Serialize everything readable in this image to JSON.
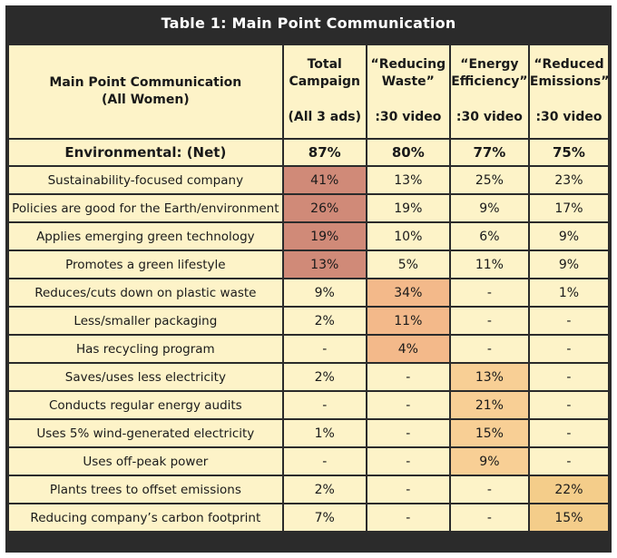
{
  "title": "Table 1: Main Point Communication",
  "header": {
    "label_col": [
      "Main Point Communication",
      "(All Women)"
    ],
    "columns": [
      {
        "title": [
          "Total",
          "Campaign"
        ],
        "sub": "(All 3 ads)"
      },
      {
        "title": [
          "“Reducing",
          "Waste”"
        ],
        "sub": ":30 video"
      },
      {
        "title": [
          "“Energy",
          "Efficiency”"
        ],
        "sub": ":30 video"
      },
      {
        "title": [
          "“Reduced",
          "Emissions”"
        ],
        "sub": ":30 video"
      }
    ]
  },
  "net": {
    "label": "Environmental: (Net)",
    "values": [
      "87%",
      "80%",
      "77%",
      "75%"
    ]
  },
  "rows": [
    {
      "label": "Sustainability-focused company",
      "values": [
        "41%",
        "13%",
        "25%",
        "23%"
      ]
    },
    {
      "label": "Policies are good for the Earth/environment",
      "values": [
        "26%",
        "19%",
        "9%",
        "17%"
      ]
    },
    {
      "label": "Applies emerging green technology",
      "values": [
        "19%",
        "10%",
        "6%",
        "9%"
      ]
    },
    {
      "label": "Promotes a green lifestyle",
      "values": [
        "13%",
        "5%",
        "11%",
        "9%"
      ]
    },
    {
      "label": "Reduces/cuts down on plastic waste",
      "values": [
        "9%",
        "34%",
        "-",
        "1%"
      ]
    },
    {
      "label": "Less/smaller packaging",
      "values": [
        "2%",
        "11%",
        "-",
        "-"
      ]
    },
    {
      "label": "Has recycling program",
      "values": [
        "-",
        "4%",
        "-",
        "-"
      ]
    },
    {
      "label": "Saves/uses less electricity",
      "values": [
        "2%",
        "-",
        "13%",
        "-"
      ]
    },
    {
      "label": "Conducts regular energy audits",
      "values": [
        "-",
        "-",
        "21%",
        "-"
      ]
    },
    {
      "label": "Uses 5% wind-generated electricity",
      "values": [
        "1%",
        "-",
        "15%",
        "-"
      ]
    },
    {
      "label": "Uses off-peak power",
      "values": [
        "-",
        "-",
        "9%",
        "-"
      ]
    },
    {
      "label": "Plants trees to offset emissions",
      "values": [
        "2%",
        "-",
        "-",
        "22%"
      ]
    },
    {
      "label": "Reducing company’s carbon footprint",
      "values": [
        "7%",
        "-",
        "-",
        "15%"
      ]
    }
  ],
  "highlight_colors": {
    "total": "#d08a78",
    "waste": "#f3b98a",
    "energy": "#f8cf95",
    "emissions": "#f4cd8a"
  }
}
